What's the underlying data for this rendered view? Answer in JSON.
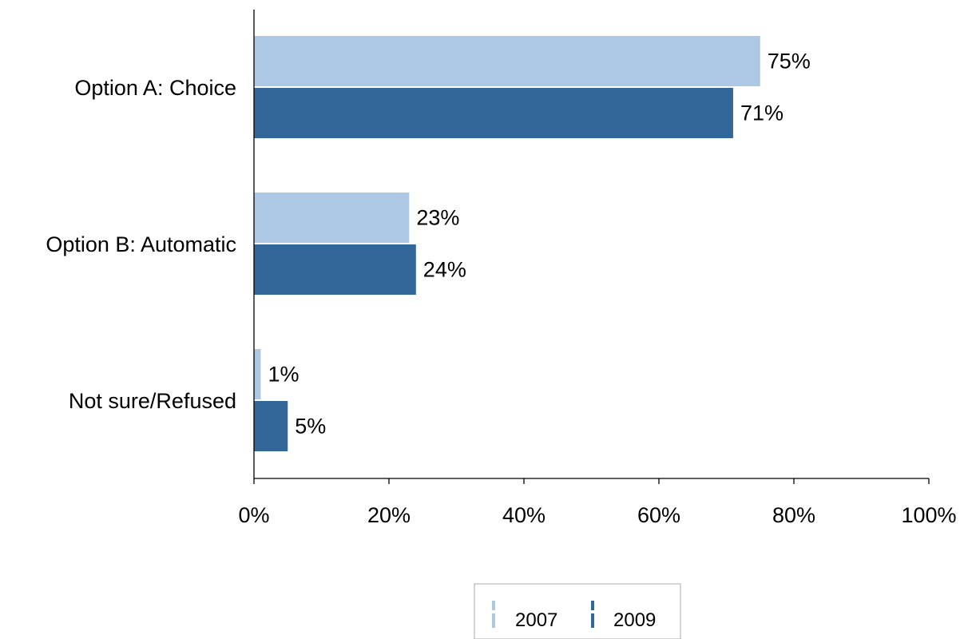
{
  "chart_data": {
    "type": "bar",
    "orientation": "horizontal",
    "categories": [
      "Option A: Choice",
      "Option B: Automatic",
      "Not sure/Refused"
    ],
    "series": [
      {
        "name": "2007",
        "values": [
          75,
          23,
          1
        ],
        "labels": [
          "75%",
          "23%",
          "1%"
        ],
        "color": "#adc8e4"
      },
      {
        "name": "2009",
        "values": [
          71,
          24,
          5
        ],
        "labels": [
          "71%",
          "24%",
          "5%"
        ],
        "color": "#336699"
      }
    ],
    "xlim": [
      0,
      100
    ],
    "xticks": [
      0,
      20,
      40,
      60,
      80,
      100
    ],
    "xtick_labels": [
      "0%",
      "20%",
      "40%",
      "60%",
      "80%",
      "100%"
    ],
    "grid": false,
    "legend_position": "bottom"
  }
}
